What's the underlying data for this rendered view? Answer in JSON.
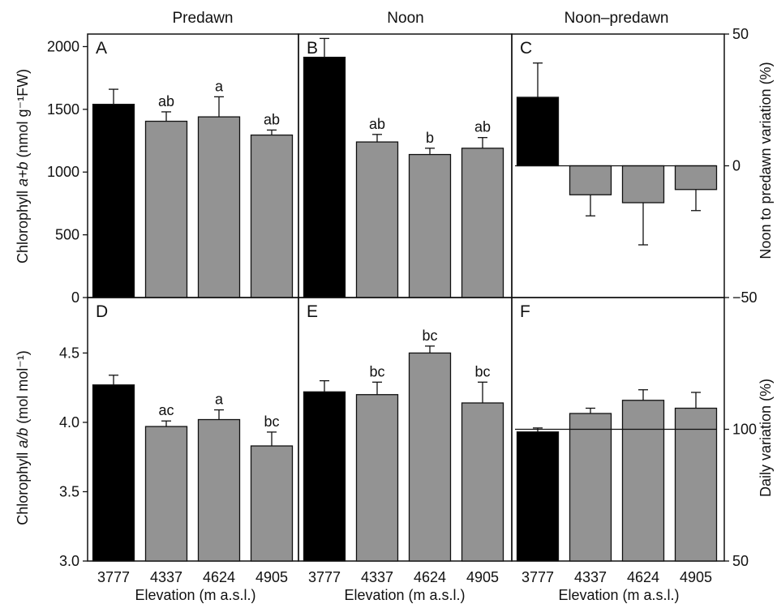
{
  "figure": {
    "column_titles": [
      "Predawn",
      "Noon",
      "Noon–predawn"
    ],
    "row_titles": {
      "left_top_italic": "a+b",
      "left_bottom_italic": "a/b"
    },
    "left_top_ylabel": {
      "pre": "Chlorophyll ",
      "italic": "a+b",
      "post": "  (nmol g⁻¹FW)"
    },
    "left_bottom_ylabel": {
      "pre": "Chlorophyll ",
      "italic": "a/b",
      "post": "  (mol mol⁻¹)"
    },
    "right_top_ylabel": "Noon to predawn variation (%)",
    "right_bottom_ylabel": "Daily variation (%)",
    "xlabel": "Elevation (m a.s.l.)",
    "colors": {
      "black_bar": "#000000",
      "grey_bar": "#939393",
      "axis": "#111111"
    }
  },
  "chart_data": [
    {
      "type": "bar",
      "panel": "A",
      "column": "Predawn",
      "categories": [
        "3777",
        "4337",
        "4624",
        "4905"
      ],
      "values": [
        1540,
        1405,
        1440,
        1295
      ],
      "errors": [
        120,
        75,
        160,
        40
      ],
      "letters": [
        "",
        "ab",
        "a",
        "ab"
      ],
      "bar_colors": [
        "#000000",
        "#939393",
        "#939393",
        "#939393"
      ],
      "ylabel": "Chlorophyll a+b  (nmol g⁻¹FW)",
      "ylim": [
        0,
        2100
      ],
      "yticks": [
        0,
        500,
        1000,
        1500,
        2000
      ]
    },
    {
      "type": "bar",
      "panel": "B",
      "column": "Noon",
      "categories": [
        "3777",
        "4337",
        "4624",
        "4905"
      ],
      "values": [
        1915,
        1240,
        1140,
        1190
      ],
      "errors": [
        150,
        60,
        50,
        85
      ],
      "letters": [
        "",
        "ab",
        "b",
        "ab"
      ],
      "bar_colors": [
        "#000000",
        "#939393",
        "#939393",
        "#939393"
      ],
      "ylim": [
        0,
        2100
      ]
    },
    {
      "type": "bar",
      "panel": "C",
      "column": "Noon–predawn",
      "categories": [
        "3777",
        "4337",
        "4624",
        "4905"
      ],
      "values": [
        26,
        -11,
        -14,
        -9
      ],
      "errors": [
        13,
        8,
        16,
        8
      ],
      "letters": [
        "",
        "",
        "",
        ""
      ],
      "bar_colors": [
        "#000000",
        "#939393",
        "#939393",
        "#939393"
      ],
      "ylabel": "Noon to predawn variation (%)",
      "ylim": [
        -50,
        50
      ],
      "yticks": [
        -50,
        0,
        50
      ]
    },
    {
      "type": "bar",
      "panel": "D",
      "column": "Predawn",
      "categories": [
        "3777",
        "4337",
        "4624",
        "4905"
      ],
      "values": [
        4.27,
        3.97,
        4.02,
        3.83
      ],
      "errors": [
        0.07,
        0.04,
        0.07,
        0.1
      ],
      "letters": [
        "",
        "ac",
        "a",
        "bc"
      ],
      "bar_colors": [
        "#000000",
        "#939393",
        "#939393",
        "#939393"
      ],
      "ylabel": "Chlorophyll a/b  (mol mol⁻¹)",
      "xlabel": "Elevation (m a.s.l.)",
      "ylim": [
        3.0,
        4.9
      ],
      "yticks": [
        3.0,
        3.5,
        4.0,
        4.5
      ]
    },
    {
      "type": "bar",
      "panel": "E",
      "column": "Noon",
      "categories": [
        "3777",
        "4337",
        "4624",
        "4905"
      ],
      "values": [
        4.22,
        4.2,
        4.5,
        4.14
      ],
      "errors": [
        0.08,
        0.09,
        0.05,
        0.15
      ],
      "letters": [
        "",
        "bc",
        "bc",
        "bc"
      ],
      "bar_colors": [
        "#000000",
        "#939393",
        "#939393",
        "#939393"
      ],
      "xlabel": "Elevation (m a.s.l.)",
      "ylim": [
        3.0,
        4.9
      ]
    },
    {
      "type": "bar",
      "panel": "F",
      "column": "Noon–predawn",
      "categories": [
        "3777",
        "4337",
        "4624",
        "4905"
      ],
      "values": [
        99,
        106,
        111,
        108
      ],
      "errors": [
        1.5,
        2,
        4,
        6
      ],
      "letters": [
        "",
        "",
        "",
        ""
      ],
      "bar_colors": [
        "#000000",
        "#939393",
        "#939393",
        "#939393"
      ],
      "ylabel": "Daily variation (%)",
      "xlabel": "Elevation (m a.s.l.)",
      "ylim": [
        50,
        150
      ],
      "yticks": [
        50,
        100
      ]
    }
  ]
}
